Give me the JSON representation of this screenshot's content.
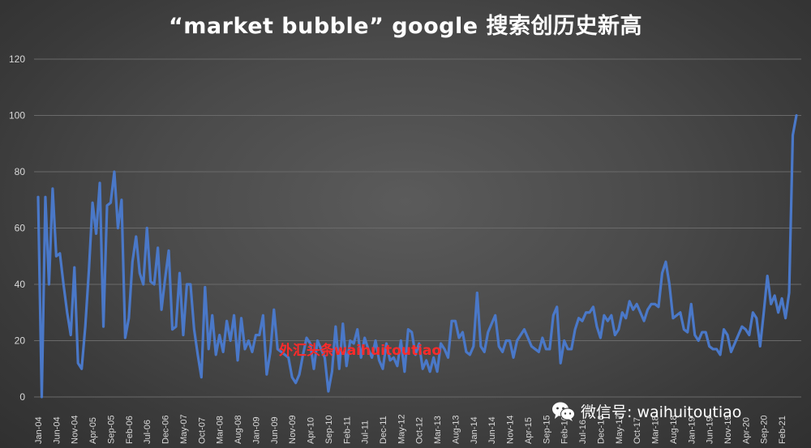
{
  "chart_data": {
    "type": "line",
    "title": "“market bubble” google 搜索创历史新高",
    "xlabel": "",
    "ylabel": "",
    "ylim": [
      0,
      120
    ],
    "yticks": [
      0,
      20,
      40,
      60,
      80,
      100,
      120
    ],
    "grid": true,
    "x_tick_labels": [
      "Jan-04",
      "Jun-04",
      "Nov-04",
      "Apr-05",
      "Sep-05",
      "Feb-06",
      "Jul-06",
      "Dec-06",
      "May-07",
      "Oct-07",
      "Mar-08",
      "Aug-08",
      "Jan-09",
      "Jun-09",
      "Nov-09",
      "Apr-10",
      "Sep-10",
      "Feb-11",
      "Jul-11",
      "Dec-11",
      "May-12",
      "Oct-12",
      "Mar-13",
      "Aug-13",
      "Jan-14",
      "Jun-14",
      "Nov-14",
      "Apr-15",
      "Sep-15",
      "Feb-16",
      "Jul-16",
      "Dec-16",
      "May-17",
      "Oct-17",
      "Mar-18",
      "Aug-18",
      "Jan-19",
      "Jun-19",
      "Nov-19",
      "Apr-20",
      "Sep-20",
      "Feb-21"
    ],
    "x_start": "2004-01",
    "x_end": "2021-02",
    "series": [
      {
        "name": "",
        "color": "#4a78c8",
        "values": [
          71,
          0,
          71,
          40,
          74,
          50,
          51,
          40,
          30,
          22,
          46,
          12,
          10,
          25,
          45,
          69,
          58,
          76,
          25,
          68,
          69,
          80,
          60,
          70,
          21,
          28,
          48,
          57,
          44,
          40,
          60,
          41,
          40,
          53,
          31,
          42,
          52,
          24,
          25,
          44,
          22,
          40,
          40,
          24,
          15,
          7,
          39,
          17,
          29,
          15,
          22,
          16,
          27,
          20,
          29,
          13,
          28,
          17,
          20,
          16,
          22,
          22,
          29,
          8,
          16,
          31,
          17,
          16,
          15,
          14,
          7,
          5,
          8,
          15,
          21,
          19,
          10,
          20,
          17,
          14,
          2,
          9,
          25,
          10,
          26,
          11,
          20,
          19,
          24,
          14,
          21,
          17,
          14,
          20,
          13,
          10,
          19,
          13,
          14,
          11,
          20,
          9,
          24,
          23,
          15,
          19,
          10,
          13,
          9,
          14,
          9,
          19,
          17,
          14,
          27,
          27,
          21,
          23,
          16,
          15,
          18,
          37,
          18,
          16,
          23,
          26,
          29,
          18,
          16,
          20,
          20,
          14,
          20,
          22,
          24,
          21,
          18,
          17,
          16,
          21,
          17,
          17,
          29,
          32,
          12,
          20,
          17,
          17,
          24,
          28,
          27,
          30,
          30,
          32,
          25,
          21,
          29,
          27,
          29,
          22,
          24,
          30,
          28,
          34,
          31,
          33,
          30,
          27,
          31,
          33,
          33,
          32,
          44,
          48,
          40,
          28,
          29,
          30,
          24,
          23,
          33,
          22,
          20,
          23,
          23,
          18,
          17,
          17,
          15,
          24,
          22,
          16,
          19,
          22,
          25,
          24,
          22,
          30,
          28,
          18,
          30,
          43,
          33,
          36,
          30,
          35,
          28,
          37,
          93,
          100
        ]
      }
    ]
  },
  "watermarks": {
    "red_text": "外汇头条waihuitoutiao",
    "wechat_text": "微信号: waihuitoutiao",
    "wechat_icon": "wechat-icon"
  }
}
